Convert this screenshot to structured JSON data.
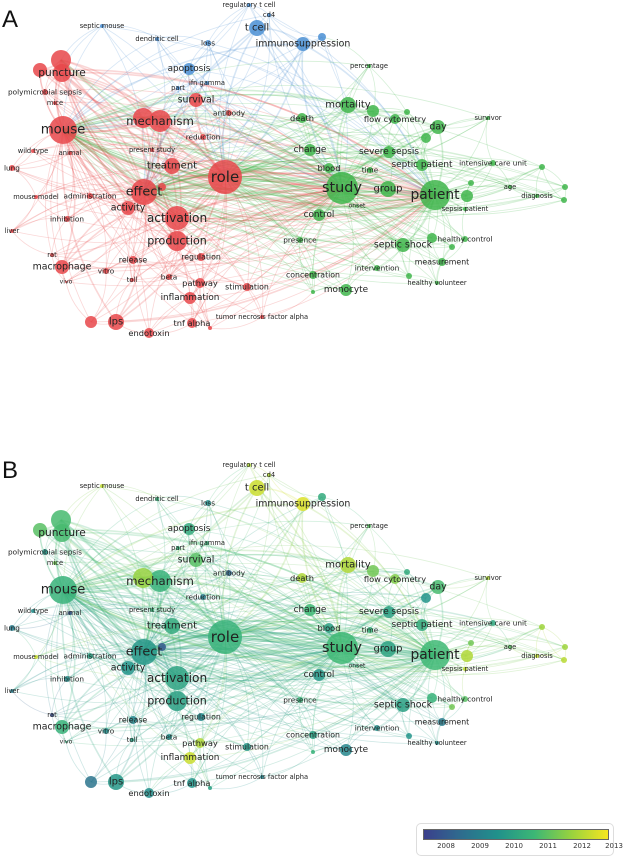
{
  "panels": [
    {
      "letter": "A",
      "coloring": "cluster"
    },
    {
      "letter": "B",
      "coloring": "year"
    }
  ],
  "cluster_colors": {
    "red": "#e8474a",
    "green": "#3fb54b",
    "blue": "#4a8fd3"
  },
  "legend": {
    "ticks": [
      "2008",
      "2009",
      "2010",
      "2011",
      "2012",
      "2013"
    ],
    "range": [
      2008,
      2013.3
    ],
    "gradient": [
      "#3b3f8c",
      "#2e6c8e",
      "#20918b",
      "#3cb775",
      "#98d23e",
      "#f6e620"
    ]
  },
  "nodes": [
    {
      "label": "puncture",
      "cluster": "red",
      "year": 2011.3
    },
    {
      "label": "polymicrobial sepsis",
      "cluster": "red",
      "year": 2010.3
    },
    {
      "label": "mice",
      "cluster": "red",
      "year": 2011.8
    },
    {
      "label": "mouse",
      "cluster": "red",
      "year": 2011.0
    },
    {
      "label": "wild type",
      "cluster": "red",
      "year": 2010.0
    },
    {
      "label": "animal",
      "cluster": "red",
      "year": 2008.5
    },
    {
      "label": "lung",
      "cluster": "red",
      "year": 2009.5
    },
    {
      "label": "mouse model",
      "cluster": "red",
      "year": 2012.8
    },
    {
      "label": "administration",
      "cluster": "red",
      "year": 2010.5
    },
    {
      "label": "inhibition",
      "cluster": "red",
      "year": 2010.0
    },
    {
      "label": "liver",
      "cluster": "red",
      "year": 2009.5
    },
    {
      "label": "rat",
      "cluster": "red",
      "year": 2008.3
    },
    {
      "label": "macrophage",
      "cluster": "red",
      "year": 2011.0
    },
    {
      "label": "vivo",
      "cluster": "red",
      "year": 2011.0
    },
    {
      "label": "mechanism",
      "cluster": "red",
      "year": 2011.0
    },
    {
      "label": "survival",
      "cluster": "red",
      "year": 2011.5
    },
    {
      "label": "antibody",
      "cluster": "red",
      "year": 2009.0
    },
    {
      "label": "reduction",
      "cluster": "red",
      "year": 2009.5
    },
    {
      "label": "present study",
      "cluster": "red",
      "year": 2011.0
    },
    {
      "label": "treatment",
      "cluster": "red",
      "year": 2010.8
    },
    {
      "label": "role",
      "cluster": "red",
      "year": 2011.0
    },
    {
      "label": "effect",
      "cluster": "red",
      "year": 2010.3
    },
    {
      "label": "activity",
      "cluster": "red",
      "year": 2010.2
    },
    {
      "label": "activation",
      "cluster": "red",
      "year": 2010.6
    },
    {
      "label": "production",
      "cluster": "red",
      "year": 2010.5
    },
    {
      "label": "release",
      "cluster": "red",
      "year": 2009.8
    },
    {
      "label": "regulation",
      "cluster": "red",
      "year": 2009.8
    },
    {
      "label": "vitro",
      "cluster": "red",
      "year": 2010.0
    },
    {
      "label": "toll",
      "cluster": "red",
      "year": 2010.5
    },
    {
      "label": "beta",
      "cluster": "red",
      "year": 2010.0
    },
    {
      "label": "pathway",
      "cluster": "red",
      "year": 2012.5
    },
    {
      "label": "stimulation",
      "cluster": "red",
      "year": 2010.3
    },
    {
      "label": "inflammation",
      "cluster": "red",
      "year": 2012.8
    },
    {
      "label": "lps",
      "cluster": "red",
      "year": 2010.3
    },
    {
      "label": "tnf alpha",
      "cluster": "red",
      "year": 2010.2
    },
    {
      "label": "endotoxin",
      "cluster": "red",
      "year": 2010.0
    },
    {
      "label": "tumor necrosis factor alpha",
      "cluster": "red",
      "year": 2009.7
    },
    {
      "label": "septic mouse",
      "cluster": "blue",
      "year": 2012.7
    },
    {
      "label": "dendritic cell",
      "cluster": "blue",
      "year": 2011.0
    },
    {
      "label": "loss",
      "cluster": "blue",
      "year": 2010.0
    },
    {
      "label": "t cell",
      "cluster": "blue",
      "year": 2012.8
    },
    {
      "label": "regulatory t cell",
      "cluster": "blue",
      "year": 2012.5
    },
    {
      "label": "cd4",
      "cluster": "blue",
      "year": 2012.5
    },
    {
      "label": "immunosuppression",
      "cluster": "blue",
      "year": 2013.0
    },
    {
      "label": "apoptosis",
      "cluster": "blue",
      "year": 2010.8
    },
    {
      "label": "part",
      "cluster": "blue",
      "year": 2011.0
    },
    {
      "label": "ifn gamma",
      "cluster": "blue",
      "year": 2011.0
    },
    {
      "label": "percentage",
      "cluster": "green",
      "year": 2011.5
    },
    {
      "label": "mortality",
      "cluster": "green",
      "year": 2012.5
    },
    {
      "label": "death",
      "cluster": "green",
      "year": 2012.5
    },
    {
      "label": "flow cytometry",
      "cluster": "green",
      "year": 2012.0
    },
    {
      "label": "day",
      "cluster": "green",
      "year": 2011.3
    },
    {
      "label": "survivor",
      "cluster": "green",
      "year": 2012.5
    },
    {
      "label": "change",
      "cluster": "green",
      "year": 2011.2
    },
    {
      "label": "severe sepsis",
      "cluster": "green",
      "year": 2010.5
    },
    {
      "label": "blood",
      "cluster": "green",
      "year": 2010.5
    },
    {
      "label": "time",
      "cluster": "green",
      "year": 2011.0
    },
    {
      "label": "septic patient",
      "cluster": "green",
      "year": 2010.8
    },
    {
      "label": "intensive care unit",
      "cluster": "green",
      "year": 2010.7
    },
    {
      "label": "study",
      "cluster": "green",
      "year": 2011.2
    },
    {
      "label": "group",
      "cluster": "green",
      "year": 2010.6
    },
    {
      "label": "patient",
      "cluster": "green",
      "year": 2011.2
    },
    {
      "label": "age",
      "cluster": "green",
      "year": 2011.5
    },
    {
      "label": "diagnosis",
      "cluster": "green",
      "year": 2012.7
    },
    {
      "label": "onset",
      "cluster": "green",
      "year": 2011.0
    },
    {
      "label": "sepsis patient",
      "cluster": "green",
      "year": 2012.7
    },
    {
      "label": "control",
      "cluster": "green",
      "year": 2010.3
    },
    {
      "label": "presence",
      "cluster": "green",
      "year": 2011.0
    },
    {
      "label": "healthy control",
      "cluster": "green",
      "year": 2011.5
    },
    {
      "label": "septic shock",
      "cluster": "green",
      "year": 2010.5
    },
    {
      "label": "measurement",
      "cluster": "green",
      "year": 2009.5
    },
    {
      "label": "intervention",
      "cluster": "green",
      "year": 2010.0
    },
    {
      "label": "healthy volunteer",
      "cluster": "green",
      "year": 2010.0
    },
    {
      "label": "concentration",
      "cluster": "green",
      "year": 2010.5
    },
    {
      "label": "monocyte",
      "cluster": "green",
      "year": 2009.8
    },
    {
      "label": "",
      "cluster": "red",
      "year": 2011.5
    },
    {
      "label": "",
      "cluster": "red",
      "year": 2011.3
    },
    {
      "label": "",
      "cluster": "red",
      "year": 2012.2
    },
    {
      "label": "",
      "cluster": "red",
      "year": 2009.3
    },
    {
      "label": "",
      "cluster": "red",
      "year": 2010.5
    },
    {
      "label": "",
      "cluster": "red",
      "year": 2008.6
    },
    {
      "label": "",
      "cluster": "blue",
      "year": 2010.8
    },
    {
      "label": "",
      "cluster": "green",
      "year": 2011.8
    },
    {
      "label": "",
      "cluster": "green",
      "year": 2010.8
    },
    {
      "label": "",
      "cluster": "green",
      "year": 2010.2
    },
    {
      "label": "",
      "cluster": "green",
      "year": 2011.8
    },
    {
      "label": "",
      "cluster": "green",
      "year": 2012.5
    },
    {
      "label": "",
      "cluster": "green",
      "year": 2012.3
    },
    {
      "label": "",
      "cluster": "green",
      "year": 2012.3
    },
    {
      "label": "",
      "cluster": "green",
      "year": 2012.6
    },
    {
      "label": "",
      "cluster": "green",
      "year": 2011.0
    },
    {
      "label": "",
      "cluster": "green",
      "year": 2011.8
    },
    {
      "label": "",
      "cluster": "green",
      "year": 2010.2
    },
    {
      "label": "",
      "cluster": "green",
      "year": 2011.0
    }
  ]
}
